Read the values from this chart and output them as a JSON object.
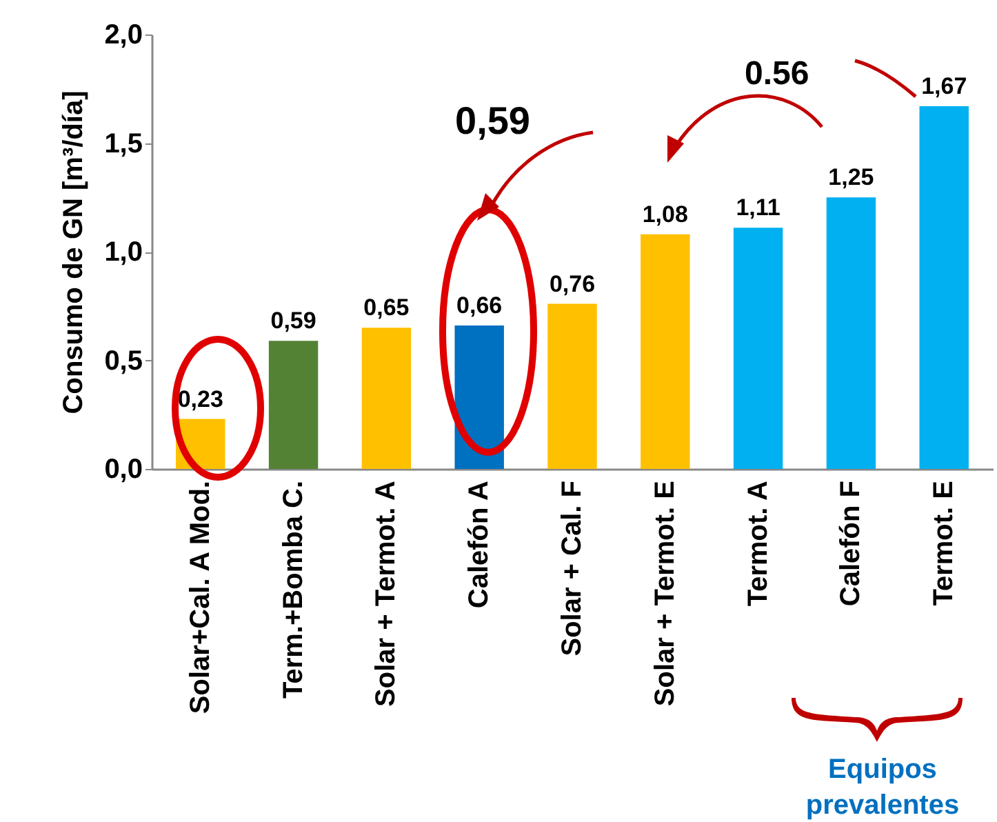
{
  "chart_data": {
    "type": "bar",
    "ylabel": "Consumo de GN [m³/día]",
    "categories": [
      "Solar+Cal. A Mod.",
      "Term.+Bomba C.",
      "Solar + Termot. A",
      "Calefón A",
      "Solar + Cal. F",
      "Solar + Termot. E",
      "Termot. A",
      "Calefón F",
      "Termot. E"
    ],
    "values": [
      0.23,
      0.59,
      0.65,
      0.66,
      0.76,
      1.08,
      1.11,
      1.25,
      1.67
    ],
    "value_labels": [
      "0,23",
      "0,59",
      "0,65",
      "0,66",
      "0,76",
      "1,08",
      "1,11",
      "1,25",
      "1,67"
    ],
    "colors": [
      "#ffc000",
      "#548235",
      "#ffc000",
      "#0070c0",
      "#ffc000",
      "#ffc000",
      "#00b0f0",
      "#00b0f0",
      "#00b0f0"
    ],
    "ylim": [
      0,
      2
    ],
    "yticks": [
      {
        "value": 0,
        "label": "0,0"
      },
      {
        "value": 0.5,
        "label": "0,5"
      },
      {
        "value": 1,
        "label": "1,0"
      },
      {
        "value": 1.5,
        "label": "1,5"
      },
      {
        "value": 2,
        "label": "2,0"
      }
    ],
    "grid": false,
    "annotations": [
      "0,59",
      "0.56",
      "Equipos prevalentes"
    ]
  }
}
